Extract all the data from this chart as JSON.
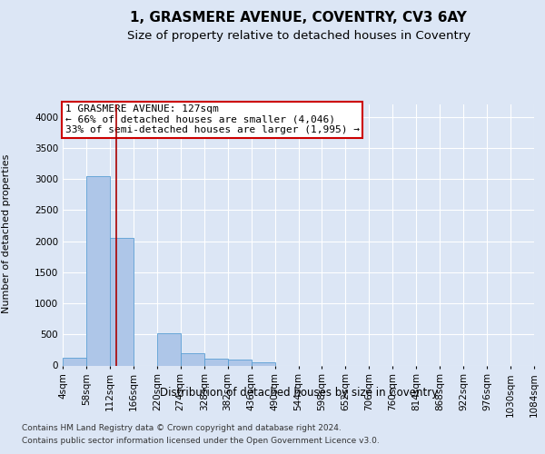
{
  "title": "1, GRASMERE AVENUE, COVENTRY, CV3 6AY",
  "subtitle": "Size of property relative to detached houses in Coventry",
  "xlabel": "Distribution of detached houses by size in Coventry",
  "ylabel": "Number of detached properties",
  "footer_line1": "Contains HM Land Registry data © Crown copyright and database right 2024.",
  "footer_line2": "Contains public sector information licensed under the Open Government Licence v3.0.",
  "annotation_line1": "1 GRASMERE AVENUE: 127sqm",
  "annotation_line2": "← 66% of detached houses are smaller (4,046)",
  "annotation_line3": "33% of semi-detached houses are larger (1,995) →",
  "bar_edges": [
    4,
    58,
    112,
    166,
    220,
    274,
    328,
    382,
    436,
    490,
    544,
    598,
    652,
    706,
    760,
    814,
    868,
    922,
    976,
    1030,
    1084
  ],
  "bar_heights": [
    130,
    3050,
    2050,
    0,
    520,
    200,
    105,
    90,
    50,
    0,
    0,
    0,
    0,
    0,
    0,
    0,
    0,
    0,
    0,
    0
  ],
  "bar_color": "#aec6e8",
  "bar_edgecolor": "#5a9fd4",
  "red_line_x": 127,
  "ylim": [
    0,
    4200
  ],
  "yticks": [
    0,
    500,
    1000,
    1500,
    2000,
    2500,
    3000,
    3500,
    4000
  ],
  "bg_color": "#dce6f5",
  "plot_bg_color": "#dce6f5",
  "grid_color": "#ffffff",
  "title_fontsize": 11,
  "subtitle_fontsize": 9.5,
  "tick_fontsize": 7.5,
  "ylabel_fontsize": 8,
  "xlabel_fontsize": 8.5,
  "annotation_box_facecolor": "#ffffff",
  "annotation_box_edgecolor": "#cc0000",
  "annotation_fontsize": 8,
  "red_line_color": "#aa0000",
  "footer_fontsize": 6.5,
  "footer_color": "#333333"
}
